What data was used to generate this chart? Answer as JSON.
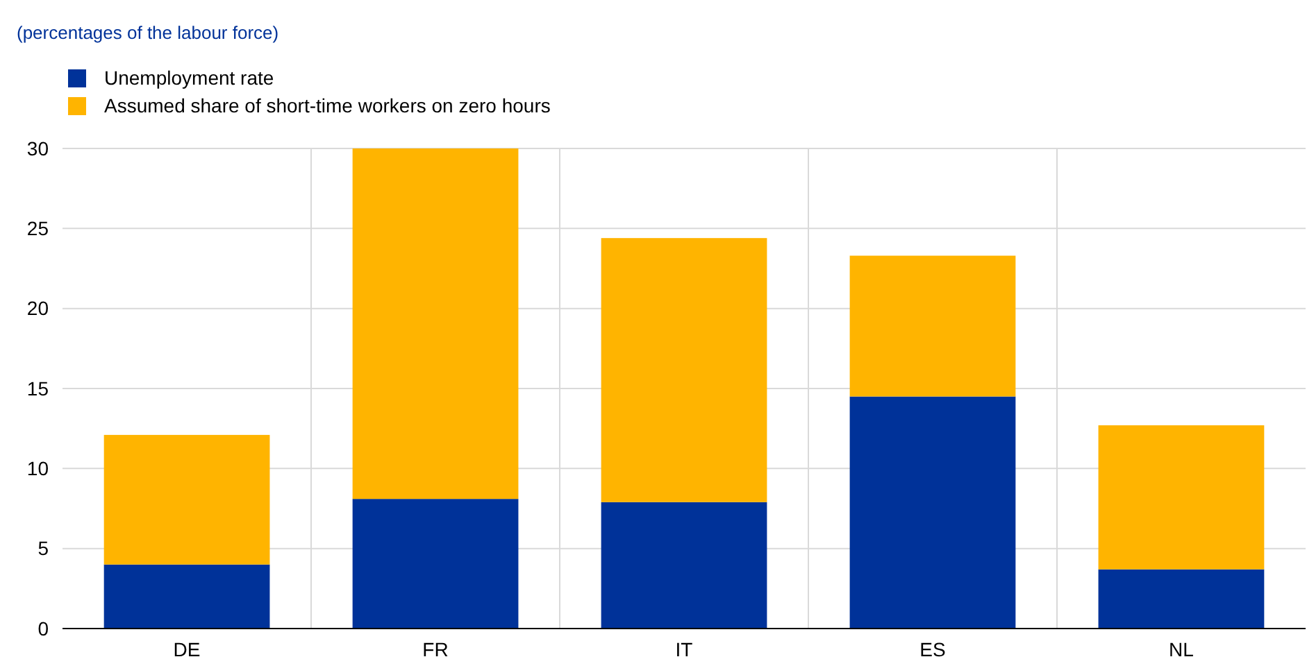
{
  "chart_data": {
    "type": "bar",
    "subtitle": "(percentages of the labour force)",
    "categories": [
      "DE",
      "FR",
      "IT",
      "ES",
      "NL"
    ],
    "series": [
      {
        "name": "Unemployment rate",
        "color": "#003299",
        "values": [
          4.0,
          8.1,
          7.9,
          14.5,
          3.7
        ]
      },
      {
        "name": "Assumed share of short-time workers on zero hours",
        "color": "#ffb400",
        "values": [
          8.1,
          21.9,
          16.5,
          8.8,
          9.0
        ]
      }
    ],
    "stacked": true,
    "ylim": [
      0,
      30
    ],
    "yticks": [
      0,
      5,
      10,
      15,
      20,
      25,
      30
    ],
    "grid": true,
    "legend": "top left"
  }
}
